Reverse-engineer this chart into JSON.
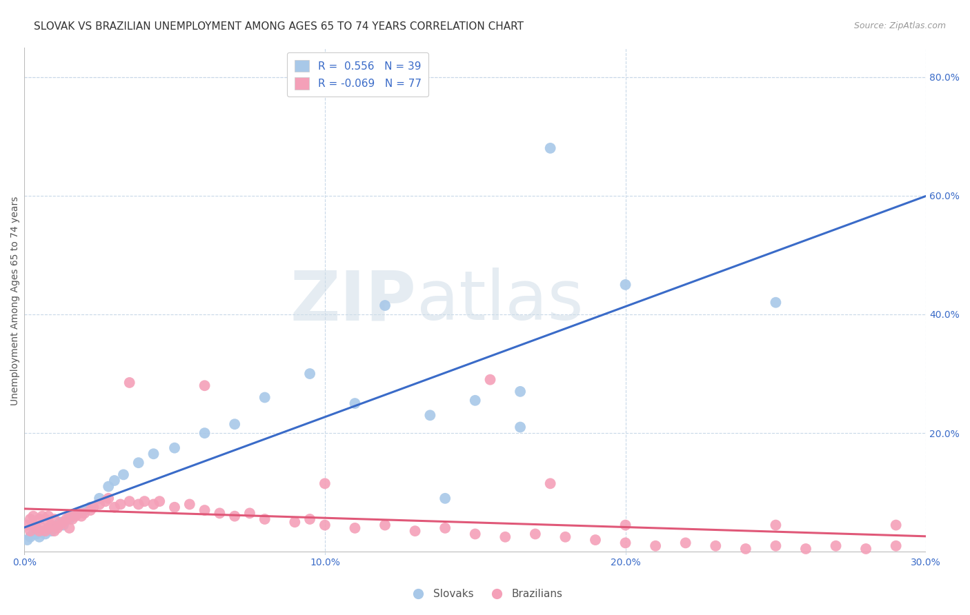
{
  "title": "SLOVAK VS BRAZILIAN UNEMPLOYMENT AMONG AGES 65 TO 74 YEARS CORRELATION CHART",
  "source": "Source: ZipAtlas.com",
  "ylabel": "Unemployment Among Ages 65 to 74 years",
  "xlim": [
    0.0,
    0.3
  ],
  "ylim": [
    -0.005,
    0.85
  ],
  "xticks": [
    0.0,
    0.1,
    0.2,
    0.3
  ],
  "yticks": [
    0.0,
    0.2,
    0.4,
    0.6,
    0.8
  ],
  "xtick_labels": [
    "0.0%",
    "10.0%",
    "20.0%",
    "30.0%"
  ],
  "ytick_labels_right": [
    "",
    "20.0%",
    "40.0%",
    "60.0%",
    "80.0%"
  ],
  "slovak_color": "#a8c8e8",
  "brazilian_color": "#f4a0b8",
  "slovak_line_color": "#3a6bc8",
  "brazilian_line_color": "#e05878",
  "background_color": "#ffffff",
  "grid_color": "#c8d8e8",
  "slovak_R": 0.556,
  "slovak_N": 39,
  "brazilian_R": -0.069,
  "brazilian_N": 77,
  "slovak_x": [
    0.001,
    0.002,
    0.003,
    0.004,
    0.005,
    0.006,
    0.007,
    0.008,
    0.009,
    0.01,
    0.011,
    0.012,
    0.013,
    0.015,
    0.016,
    0.018,
    0.02,
    0.022,
    0.025,
    0.028,
    0.03,
    0.033,
    0.038,
    0.043,
    0.05,
    0.06,
    0.07,
    0.08,
    0.095,
    0.11,
    0.12,
    0.135,
    0.15,
    0.165,
    0.175,
    0.2,
    0.14,
    0.165,
    0.25
  ],
  "slovak_y": [
    0.02,
    0.025,
    0.03,
    0.03,
    0.025,
    0.035,
    0.03,
    0.04,
    0.035,
    0.04,
    0.045,
    0.05,
    0.045,
    0.055,
    0.06,
    0.065,
    0.07,
    0.075,
    0.09,
    0.11,
    0.12,
    0.13,
    0.15,
    0.165,
    0.175,
    0.2,
    0.215,
    0.26,
    0.3,
    0.25,
    0.415,
    0.23,
    0.255,
    0.27,
    0.68,
    0.45,
    0.09,
    0.21,
    0.42
  ],
  "brazilian_x": [
    0.001,
    0.002,
    0.002,
    0.003,
    0.003,
    0.004,
    0.005,
    0.005,
    0.006,
    0.006,
    0.007,
    0.007,
    0.008,
    0.008,
    0.009,
    0.01,
    0.01,
    0.011,
    0.012,
    0.013,
    0.014,
    0.015,
    0.015,
    0.016,
    0.017,
    0.018,
    0.019,
    0.02,
    0.022,
    0.023,
    0.025,
    0.027,
    0.028,
    0.03,
    0.032,
    0.035,
    0.038,
    0.04,
    0.043,
    0.045,
    0.05,
    0.055,
    0.06,
    0.065,
    0.07,
    0.075,
    0.08,
    0.09,
    0.095,
    0.1,
    0.11,
    0.12,
    0.13,
    0.14,
    0.15,
    0.16,
    0.17,
    0.18,
    0.19,
    0.2,
    0.21,
    0.22,
    0.23,
    0.24,
    0.25,
    0.26,
    0.27,
    0.28,
    0.29,
    0.1,
    0.155,
    0.175,
    0.2,
    0.25,
    0.29,
    0.035,
    0.06
  ],
  "brazilian_y": [
    0.045,
    0.035,
    0.055,
    0.045,
    0.06,
    0.04,
    0.035,
    0.055,
    0.04,
    0.06,
    0.035,
    0.055,
    0.04,
    0.06,
    0.045,
    0.035,
    0.055,
    0.04,
    0.045,
    0.05,
    0.055,
    0.04,
    0.06,
    0.055,
    0.06,
    0.065,
    0.06,
    0.065,
    0.07,
    0.075,
    0.08,
    0.085,
    0.09,
    0.075,
    0.08,
    0.085,
    0.08,
    0.085,
    0.08,
    0.085,
    0.075,
    0.08,
    0.07,
    0.065,
    0.06,
    0.065,
    0.055,
    0.05,
    0.055,
    0.045,
    0.04,
    0.045,
    0.035,
    0.04,
    0.03,
    0.025,
    0.03,
    0.025,
    0.02,
    0.015,
    0.01,
    0.015,
    0.01,
    0.005,
    0.01,
    0.005,
    0.01,
    0.005,
    0.01,
    0.115,
    0.29,
    0.115,
    0.045,
    0.045,
    0.045,
    0.285,
    0.28
  ],
  "watermark_zip": "ZIP",
  "watermark_atlas": "atlas",
  "title_fontsize": 11,
  "axis_label_fontsize": 10,
  "tick_fontsize": 10,
  "legend_fontsize": 11
}
